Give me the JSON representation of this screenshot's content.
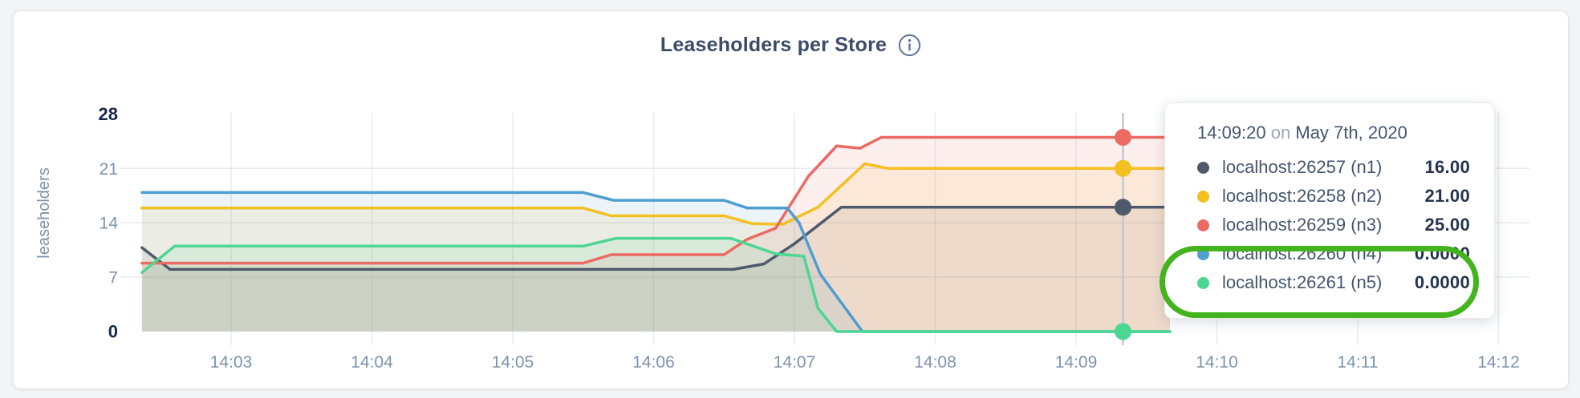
{
  "page": {
    "background": "#F2F4F7",
    "card_background": "#FFFFFF"
  },
  "header": {
    "title": "Leaseholders per Store",
    "info_icon": "info-icon"
  },
  "chart_data": {
    "type": "area",
    "title": "Leaseholders per Store",
    "xlabel": "",
    "ylabel": "leaseholders",
    "ylim": [
      0,
      28
    ],
    "yticks": [
      {
        "label": "28",
        "value": 28,
        "bold": true,
        "grid": false
      },
      {
        "label": "21",
        "value": 21,
        "bold": false,
        "grid": true
      },
      {
        "label": "14",
        "value": 14,
        "bold": false,
        "grid": true
      },
      {
        "label": "7",
        "value": 7,
        "bold": false,
        "grid": true
      },
      {
        "label": "0",
        "value": 0,
        "bold": true,
        "grid": false
      }
    ],
    "xticks": [
      "14:03",
      "14:04",
      "14:05",
      "14:06",
      "14:07",
      "14:08",
      "14:09",
      "14:10",
      "14:11",
      "14:12"
    ],
    "x_range": [
      "14:02:22",
      "14:12:13"
    ],
    "grid": true,
    "legend_position": "tooltip",
    "fill_opacity": 0.11,
    "series": [
      {
        "name": "localhost:26257 (n1)",
        "node": "n1",
        "color": "#4E5A6B",
        "hover_value": 16,
        "points": [
          [
            "14:02:22",
            10.8
          ],
          [
            "14:02:34",
            8
          ],
          [
            "14:06:34",
            8
          ],
          [
            "14:06:47",
            8.7
          ],
          [
            "14:07:00",
            11.3
          ],
          [
            "14:07:20",
            16
          ],
          [
            "14:09:40",
            16
          ]
        ]
      },
      {
        "name": "localhost:26258 (n2)",
        "node": "n2",
        "color": "#F3C021",
        "hover_value": 21,
        "points": [
          [
            "14:02:22",
            15.9
          ],
          [
            "14:05:30",
            15.9
          ],
          [
            "14:05:42",
            14.9
          ],
          [
            "14:06:30",
            14.9
          ],
          [
            "14:06:42",
            13.9
          ],
          [
            "14:06:55",
            13.8
          ],
          [
            "14:07:10",
            16
          ],
          [
            "14:07:30",
            21.6
          ],
          [
            "14:07:40",
            21
          ],
          [
            "14:09:40",
            21
          ]
        ]
      },
      {
        "name": "localhost:26259 (n3)",
        "node": "n3",
        "color": "#EC6A62",
        "hover_value": 25,
        "points": [
          [
            "14:02:22",
            8.8
          ],
          [
            "14:05:30",
            8.8
          ],
          [
            "14:05:42",
            9.9
          ],
          [
            "14:06:30",
            9.9
          ],
          [
            "14:06:40",
            11.9
          ],
          [
            "14:06:52",
            13.3
          ],
          [
            "14:07:06",
            20
          ],
          [
            "14:07:18",
            23.9
          ],
          [
            "14:07:28",
            23.6
          ],
          [
            "14:07:37",
            25
          ],
          [
            "14:09:40",
            25
          ]
        ]
      },
      {
        "name": "localhost:26260 (n4)",
        "node": "n4",
        "color": "#4E9ED0",
        "hover_value": 0,
        "points": [
          [
            "14:02:22",
            17.9
          ],
          [
            "14:05:30",
            17.9
          ],
          [
            "14:05:43",
            16.9
          ],
          [
            "14:06:30",
            16.9
          ],
          [
            "14:06:40",
            15.9
          ],
          [
            "14:06:57",
            15.9
          ],
          [
            "14:07:02",
            14
          ],
          [
            "14:07:11",
            7.4
          ],
          [
            "14:07:29",
            0
          ],
          [
            "14:09:40",
            0
          ]
        ]
      },
      {
        "name": "localhost:26261 (n5)",
        "node": "n5",
        "color": "#4BD691",
        "hover_value": 0,
        "points": [
          [
            "14:02:22",
            7.6
          ],
          [
            "14:02:36",
            11
          ],
          [
            "14:05:30",
            11
          ],
          [
            "14:05:44",
            12
          ],
          [
            "14:06:33",
            12
          ],
          [
            "14:06:52",
            10
          ],
          [
            "14:07:00",
            9.8
          ],
          [
            "14:07:04",
            9.7
          ],
          [
            "14:07:10",
            3
          ],
          [
            "14:07:18",
            0
          ],
          [
            "14:09:40",
            0
          ]
        ]
      }
    ],
    "hover": {
      "time": "14:09:20",
      "date": "May 7th, 2020"
    }
  },
  "tooltip": {
    "time": "14:09:20",
    "conjunction": "on",
    "date": "May 7th, 2020",
    "rows": [
      {
        "label": "localhost:26257 (n1)",
        "value": "16.00",
        "color": "#4E5A6B"
      },
      {
        "label": "localhost:26258 (n2)",
        "value": "21.00",
        "color": "#F3C021"
      },
      {
        "label": "localhost:26259 (n3)",
        "value": "25.00",
        "color": "#EC6A62"
      },
      {
        "label": "localhost:26260 (n4)",
        "value": "0.0000",
        "color": "#4E9ED0"
      },
      {
        "label": "localhost:26261 (n5)",
        "value": "0.0000",
        "color": "#4BD691"
      }
    ],
    "highlight_color": "#44B41E"
  }
}
